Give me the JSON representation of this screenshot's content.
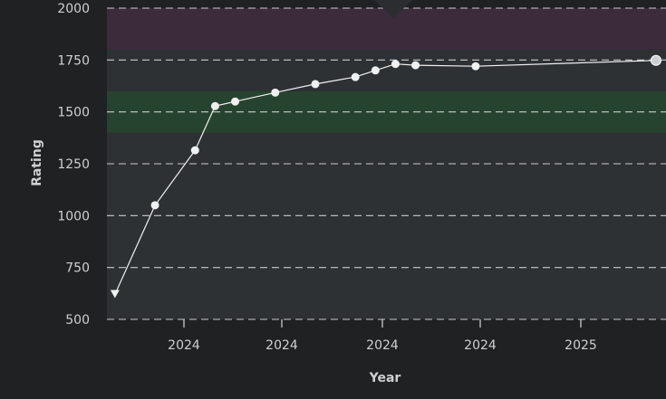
{
  "chart_data": {
    "type": "line",
    "xlabel": "Year",
    "ylabel": "Rating",
    "ylim": [
      500,
      2000
    ],
    "yticks": [
      500,
      750,
      1000,
      1250,
      1500,
      1750,
      2000
    ],
    "xtick_labels": [
      "2024",
      "2024",
      "2024",
      "2024",
      "2025"
    ],
    "grid": true,
    "bands": [
      {
        "from": 500,
        "to": 1400,
        "color": "#2d3134"
      },
      {
        "from": 1400,
        "to": 1600,
        "color": "#26432f"
      },
      {
        "from": 1600,
        "to": 1800,
        "color": "#2d3134"
      },
      {
        "from": 1800,
        "to": 2000,
        "color": "#3b2b3b"
      }
    ],
    "series": [
      {
        "values": [
          {
            "x": "2023-07",
            "y": 620
          },
          {
            "x": "2023-09",
            "y": 1050
          },
          {
            "x": "2023-11",
            "y": 1315
          },
          {
            "x": "2023-12",
            "y": 1528
          },
          {
            "x": "2024-01",
            "y": 1550
          },
          {
            "x": "2024-03",
            "y": 1593
          },
          {
            "x": "2024-05",
            "y": 1634
          },
          {
            "x": "2024-07",
            "y": 1668
          },
          {
            "x": "2024-08",
            "y": 1700
          },
          {
            "x": "2024-09",
            "y": 1731
          },
          {
            "x": "2024-10",
            "y": 1725
          },
          {
            "x": "2025-01",
            "y": 1720
          },
          {
            "x": "2025-10",
            "y": 1748
          }
        ]
      }
    ],
    "colors": {
      "line": "#f2f2f2",
      "marker": "#f0f0f0",
      "marker_last": "#cfcfcf",
      "grid": "#e6e6e6",
      "plot_bg": "#2d3134",
      "page_bg": "#1f2123"
    }
  }
}
